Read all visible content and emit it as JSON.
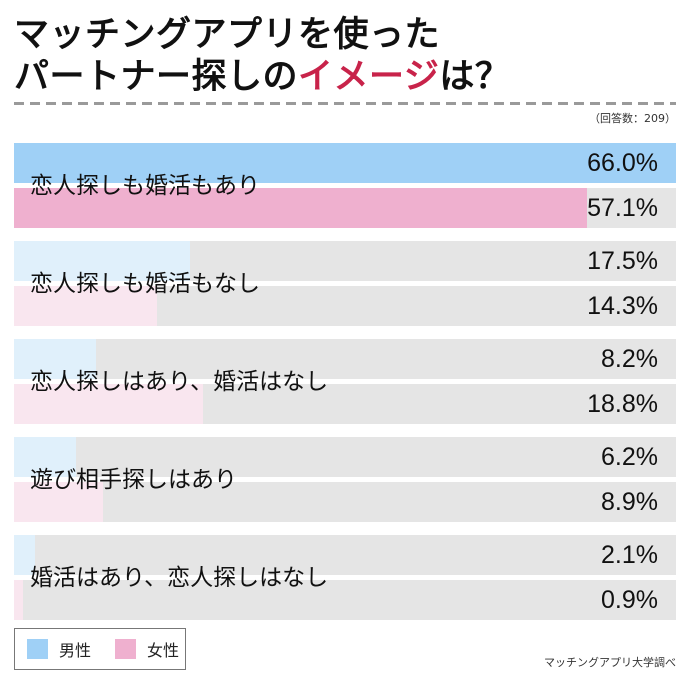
{
  "title": {
    "line1": "マッチングアプリを使った",
    "line2_prefix": "パートナー探しの",
    "line2_accent": "イメージ",
    "line2_suffix": "は？",
    "accent_color": "#c8234a"
  },
  "respondents": "（回答数：209）",
  "colors": {
    "male_top": "#9fd0f6",
    "female_top": "#efb0cf",
    "male_other": "#e0f0fb",
    "female_other": "#f9e6ef",
    "track": "#e5e5e5"
  },
  "legend": {
    "male_label": "男性",
    "female_label": "女性"
  },
  "source": "マッチングアプリ大学調べ",
  "chart_data": {
    "type": "bar",
    "orientation": "horizontal",
    "title": "マッチングアプリを使ったパートナー探しのイメージは？",
    "subtitle": "（回答数：209）",
    "categories": [
      "恋人探しも婚活もあり",
      "恋人探しも婚活もなし",
      "恋人探しはあり、婚活はなし",
      "遊び相手探しはあり",
      "婚活はあり、恋人探しはなし"
    ],
    "series": [
      {
        "name": "男性",
        "color": "#9fd0f6",
        "values": [
          66.0,
          17.5,
          8.2,
          6.2,
          2.1
        ]
      },
      {
        "name": "女性",
        "color": "#efb0cf",
        "values": [
          57.1,
          14.3,
          18.8,
          8.9,
          0.9
        ]
      }
    ],
    "value_labels": {
      "male": [
        "66.0%",
        "17.5%",
        "8.2%",
        "6.2%",
        "2.1%"
      ],
      "female": [
        "57.1%",
        "14.3%",
        "18.8%",
        "8.9%",
        "0.9%"
      ]
    },
    "xlim": [
      0,
      66.0
    ],
    "unit": "%",
    "grid": false,
    "legend_position": "bottom-left",
    "source": "マッチングアプリ大学調べ"
  }
}
